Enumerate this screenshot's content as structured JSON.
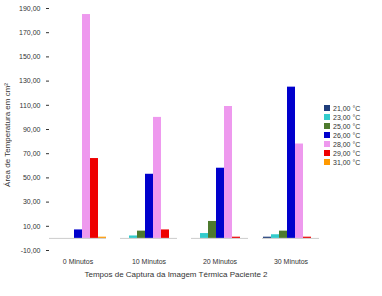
{
  "chart_data": {
    "type": "bar",
    "xlabel": "Tempos de Captura da Imagem Térmica Paciente 2",
    "ylabel": "Área de Temperatura em cm²",
    "categories": [
      "0 Minutos",
      "10 Minutos",
      "20 Minutos",
      "30 Minutos"
    ],
    "series": [
      {
        "name": "21,00 °C",
        "color": "#1f3d7a",
        "values": [
          0,
          0,
          0,
          1
        ]
      },
      {
        "name": "23,00 °C",
        "color": "#33cccc",
        "values": [
          0,
          2,
          4,
          3
        ]
      },
      {
        "name": "25,00 °C",
        "color": "#4e7a2e",
        "values": [
          0,
          6,
          14,
          6
        ]
      },
      {
        "name": "26,00 °C",
        "color": "#0000cc",
        "values": [
          7,
          53,
          58,
          125
        ]
      },
      {
        "name": "28,00 °C",
        "color": "#ee99ee",
        "values": [
          185,
          100,
          109,
          78
        ]
      },
      {
        "name": "29,00 °C",
        "color": "#ee0000",
        "values": [
          66,
          7,
          1,
          1
        ]
      },
      {
        "name": "31,00 °C",
        "color": "#ff9900",
        "values": [
          1,
          0,
          0,
          0
        ]
      }
    ],
    "ylim": [
      -10,
      190
    ],
    "yticks": [
      {
        "value": -10,
        "label": "-10,00"
      },
      {
        "value": 10,
        "label": "10,00"
      },
      {
        "value": 30,
        "label": "30,00"
      },
      {
        "value": 50,
        "label": "50,00"
      },
      {
        "value": 70,
        "label": "70,00"
      },
      {
        "value": 90,
        "label": "90,00"
      },
      {
        "value": 110,
        "label": "110,00"
      },
      {
        "value": 130,
        "label": "130,00"
      },
      {
        "value": 150,
        "label": "150,00"
      },
      {
        "value": 170,
        "label": "170,00"
      },
      {
        "value": 190,
        "label": "190,00"
      }
    ],
    "grid": false,
    "legend": "right"
  }
}
